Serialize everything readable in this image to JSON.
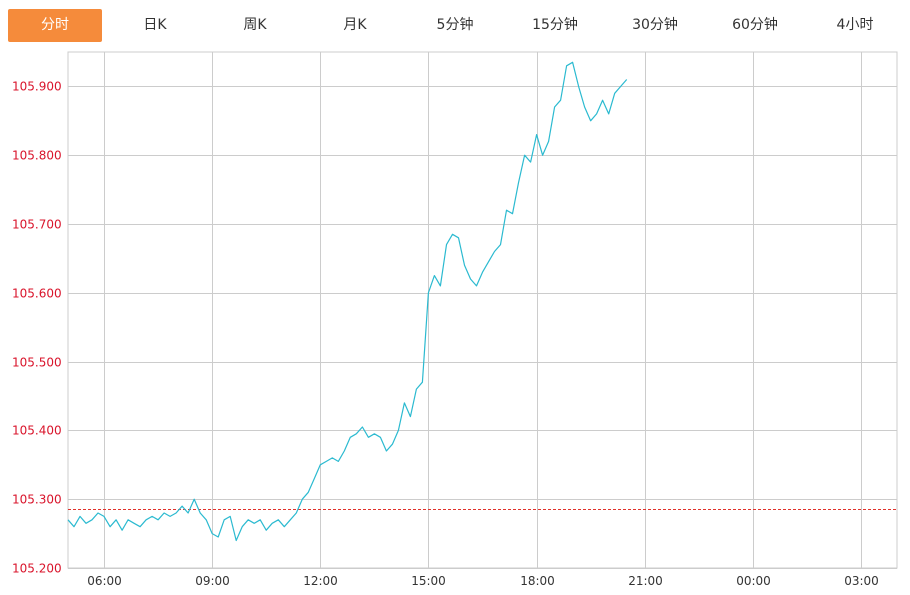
{
  "tabs": [
    {
      "label": "分时",
      "active": true
    },
    {
      "label": "日K",
      "active": false
    },
    {
      "label": "周K",
      "active": false
    },
    {
      "label": "月K",
      "active": false
    },
    {
      "label": "5分钟",
      "active": false
    },
    {
      "label": "15分钟",
      "active": false
    },
    {
      "label": "30分钟",
      "active": false
    },
    {
      "label": "60分钟",
      "active": false
    },
    {
      "label": "4小时",
      "active": false
    }
  ],
  "colors": {
    "tab_active_bg": "#f58b3b",
    "line": "#2bbad0",
    "reference_line": "#e0322b",
    "y_tick_text": "#d9142b",
    "grid": "#cccccc"
  },
  "chart_data": {
    "type": "line",
    "title": "",
    "xlabel": "",
    "ylabel": "",
    "grid": true,
    "ylim": [
      105.2,
      105.95
    ],
    "yticks": [
      "105.200",
      "105.300",
      "105.400",
      "105.500",
      "105.600",
      "105.700",
      "105.800",
      "105.900"
    ],
    "xlim": [
      "05:00",
      "04:00"
    ],
    "xticks": [
      "06:00",
      "09:00",
      "12:00",
      "15:00",
      "18:00",
      "21:00",
      "00:00",
      "03:00"
    ],
    "reference_line": {
      "value": 105.285,
      "style": "dashed"
    },
    "series": [
      {
        "x": [
          "05:00",
          "05:10",
          "05:20",
          "05:30",
          "05:40",
          "05:50",
          "06:00",
          "06:10",
          "06:20",
          "06:30",
          "06:40",
          "06:50",
          "07:00",
          "07:10",
          "07:20",
          "07:30",
          "07:40",
          "07:50",
          "08:00",
          "08:10",
          "08:20",
          "08:30",
          "08:40",
          "08:50",
          "09:00",
          "09:10",
          "09:20",
          "09:30",
          "09:40",
          "09:50",
          "10:00",
          "10:10",
          "10:20",
          "10:30",
          "10:40",
          "10:50",
          "11:00",
          "11:10",
          "11:20",
          "11:30",
          "11:40",
          "11:50",
          "12:00",
          "12:10",
          "12:20",
          "12:30",
          "12:40",
          "12:50",
          "13:00",
          "13:10",
          "13:20",
          "13:30",
          "13:40",
          "13:50",
          "14:00",
          "14:10",
          "14:20",
          "14:30",
          "14:40",
          "14:50",
          "15:00",
          "15:10",
          "15:20",
          "15:30",
          "15:40",
          "15:50",
          "16:00",
          "16:10",
          "16:20",
          "16:30",
          "16:40",
          "16:50",
          "17:00",
          "17:10",
          "17:20",
          "17:30",
          "17:40",
          "17:50",
          "18:00",
          "18:10",
          "18:20",
          "18:30",
          "18:40",
          "18:50",
          "19:00",
          "19:10",
          "19:20",
          "19:30",
          "19:40",
          "19:50",
          "20:00",
          "20:10",
          "20:20",
          "20:30"
        ],
        "values": [
          105.27,
          105.26,
          105.275,
          105.265,
          105.27,
          105.28,
          105.275,
          105.26,
          105.27,
          105.255,
          105.27,
          105.265,
          105.26,
          105.27,
          105.275,
          105.27,
          105.28,
          105.275,
          105.28,
          105.29,
          105.28,
          105.3,
          105.28,
          105.27,
          105.25,
          105.245,
          105.27,
          105.275,
          105.24,
          105.26,
          105.27,
          105.265,
          105.27,
          105.255,
          105.265,
          105.27,
          105.26,
          105.27,
          105.28,
          105.3,
          105.31,
          105.33,
          105.35,
          105.355,
          105.36,
          105.355,
          105.37,
          105.39,
          105.395,
          105.405,
          105.39,
          105.395,
          105.39,
          105.37,
          105.38,
          105.4,
          105.44,
          105.42,
          105.46,
          105.47,
          105.6,
          105.625,
          105.61,
          105.67,
          105.685,
          105.68,
          105.64,
          105.62,
          105.61,
          105.63,
          105.645,
          105.66,
          105.67,
          105.72,
          105.715,
          105.76,
          105.8,
          105.79,
          105.83,
          105.8,
          105.82,
          105.87,
          105.88,
          105.93,
          105.935,
          105.9,
          105.87,
          105.85,
          105.86,
          105.88,
          105.86,
          105.89,
          105.9,
          105.91
        ]
      }
    ]
  }
}
